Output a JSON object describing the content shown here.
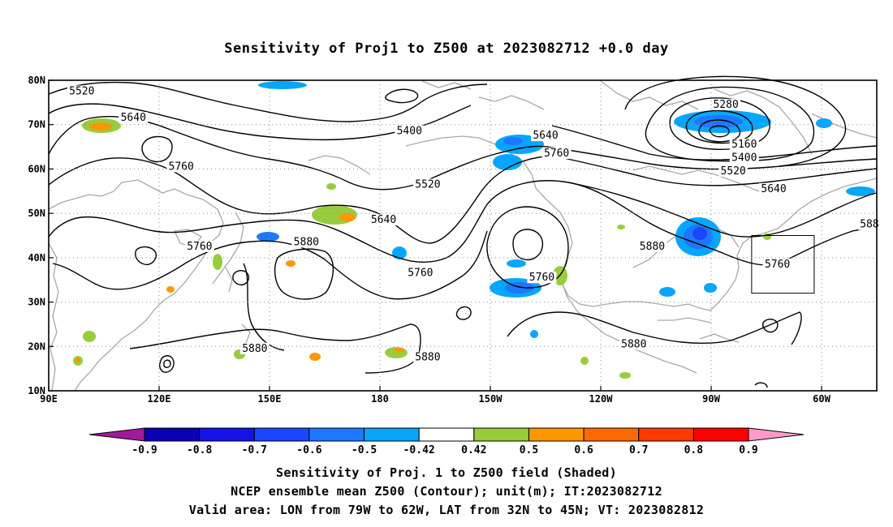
{
  "title": "Sensitivity of Proj1 to Z500 at 2023082712 +0.0 day",
  "chart_data": {
    "type": "map",
    "projection": "cylindrical",
    "lon_range": [
      90,
      315
    ],
    "lat_range": [
      10,
      80
    ],
    "x_ticks": [
      {
        "lon": 90,
        "label": "90E"
      },
      {
        "lon": 120,
        "label": "120E"
      },
      {
        "lon": 150,
        "label": "150E"
      },
      {
        "lon": 180,
        "label": "180"
      },
      {
        "lon": 210,
        "label": "150W"
      },
      {
        "lon": 240,
        "label": "120W"
      },
      {
        "lon": 270,
        "label": "90W"
      },
      {
        "lon": 300,
        "label": "60W"
      }
    ],
    "y_ticks": [
      {
        "lat": 10,
        "label": "10N"
      },
      {
        "lat": 20,
        "label": "20N"
      },
      {
        "lat": 30,
        "label": "30N"
      },
      {
        "lat": 40,
        "label": "40N"
      },
      {
        "lat": 50,
        "label": "50N"
      },
      {
        "lat": 60,
        "label": "60N"
      },
      {
        "lat": 70,
        "label": "70N"
      },
      {
        "lat": 80,
        "label": "80N"
      }
    ],
    "grid": "dotted",
    "contour_labels": [
      {
        "text": "5520",
        "lon": 99,
        "lat": 77
      },
      {
        "text": "5640",
        "lon": 113,
        "lat": 71
      },
      {
        "text": "5400",
        "lon": 188,
        "lat": 68
      },
      {
        "text": "5760",
        "lon": 126,
        "lat": 60
      },
      {
        "text": "5520",
        "lon": 193,
        "lat": 56
      },
      {
        "text": "5640",
        "lon": 225,
        "lat": 67
      },
      {
        "text": "5760",
        "lon": 228,
        "lat": 63
      },
      {
        "text": "5640",
        "lon": 181,
        "lat": 48
      },
      {
        "text": "5760",
        "lon": 131,
        "lat": 42
      },
      {
        "text": "5880",
        "lon": 160,
        "lat": 43
      },
      {
        "text": "5760",
        "lon": 191,
        "lat": 36
      },
      {
        "text": "5760",
        "lon": 224,
        "lat": 35
      },
      {
        "text": "5880",
        "lon": 254,
        "lat": 42
      },
      {
        "text": "5280",
        "lon": 274,
        "lat": 74
      },
      {
        "text": "5160",
        "lon": 279,
        "lat": 65
      },
      {
        "text": "5400",
        "lon": 279,
        "lat": 62
      },
      {
        "text": "5520",
        "lon": 276,
        "lat": 59
      },
      {
        "text": "5640",
        "lon": 287,
        "lat": 55
      },
      {
        "text": "5760",
        "lon": 288,
        "lat": 38
      },
      {
        "text": "588",
        "lon": 313,
        "lat": 47
      },
      {
        "text": "5880",
        "lon": 146,
        "lat": 19
      },
      {
        "text": "5880",
        "lon": 193,
        "lat": 17
      },
      {
        "text": "5880",
        "lon": 249,
        "lat": 20
      }
    ],
    "valid_area": {
      "lon_min": 281,
      "lon_max": 298,
      "lat_min": 32,
      "lat_max": 45
    },
    "colorbar": {
      "levels": [
        "-0.9",
        "-0.8",
        "-0.7",
        "-0.6",
        "-0.5",
        "-0.42",
        "0.42",
        "0.5",
        "0.6",
        "0.7",
        "0.8",
        "0.9"
      ],
      "colors": [
        "#a01a9c",
        "#0a00b4",
        "#1414e6",
        "#1a46ff",
        "#1e78ff",
        "#06a6ff",
        "#ffffff",
        "#98cc3c",
        "#ff9800",
        "#ff6a00",
        "#ff3a00",
        "#ff0000",
        "#ff9bc8"
      ]
    }
  },
  "captions": {
    "line1": "Sensitivity of Proj. 1 to Z500 field (Shaded)",
    "line2": "NCEP ensemble mean Z500 (Contour); unit(m); IT:2023082712",
    "line3": "Valid area: LON from 79W to 62W, LAT from 32N to 45N; VT: 2023082812"
  }
}
